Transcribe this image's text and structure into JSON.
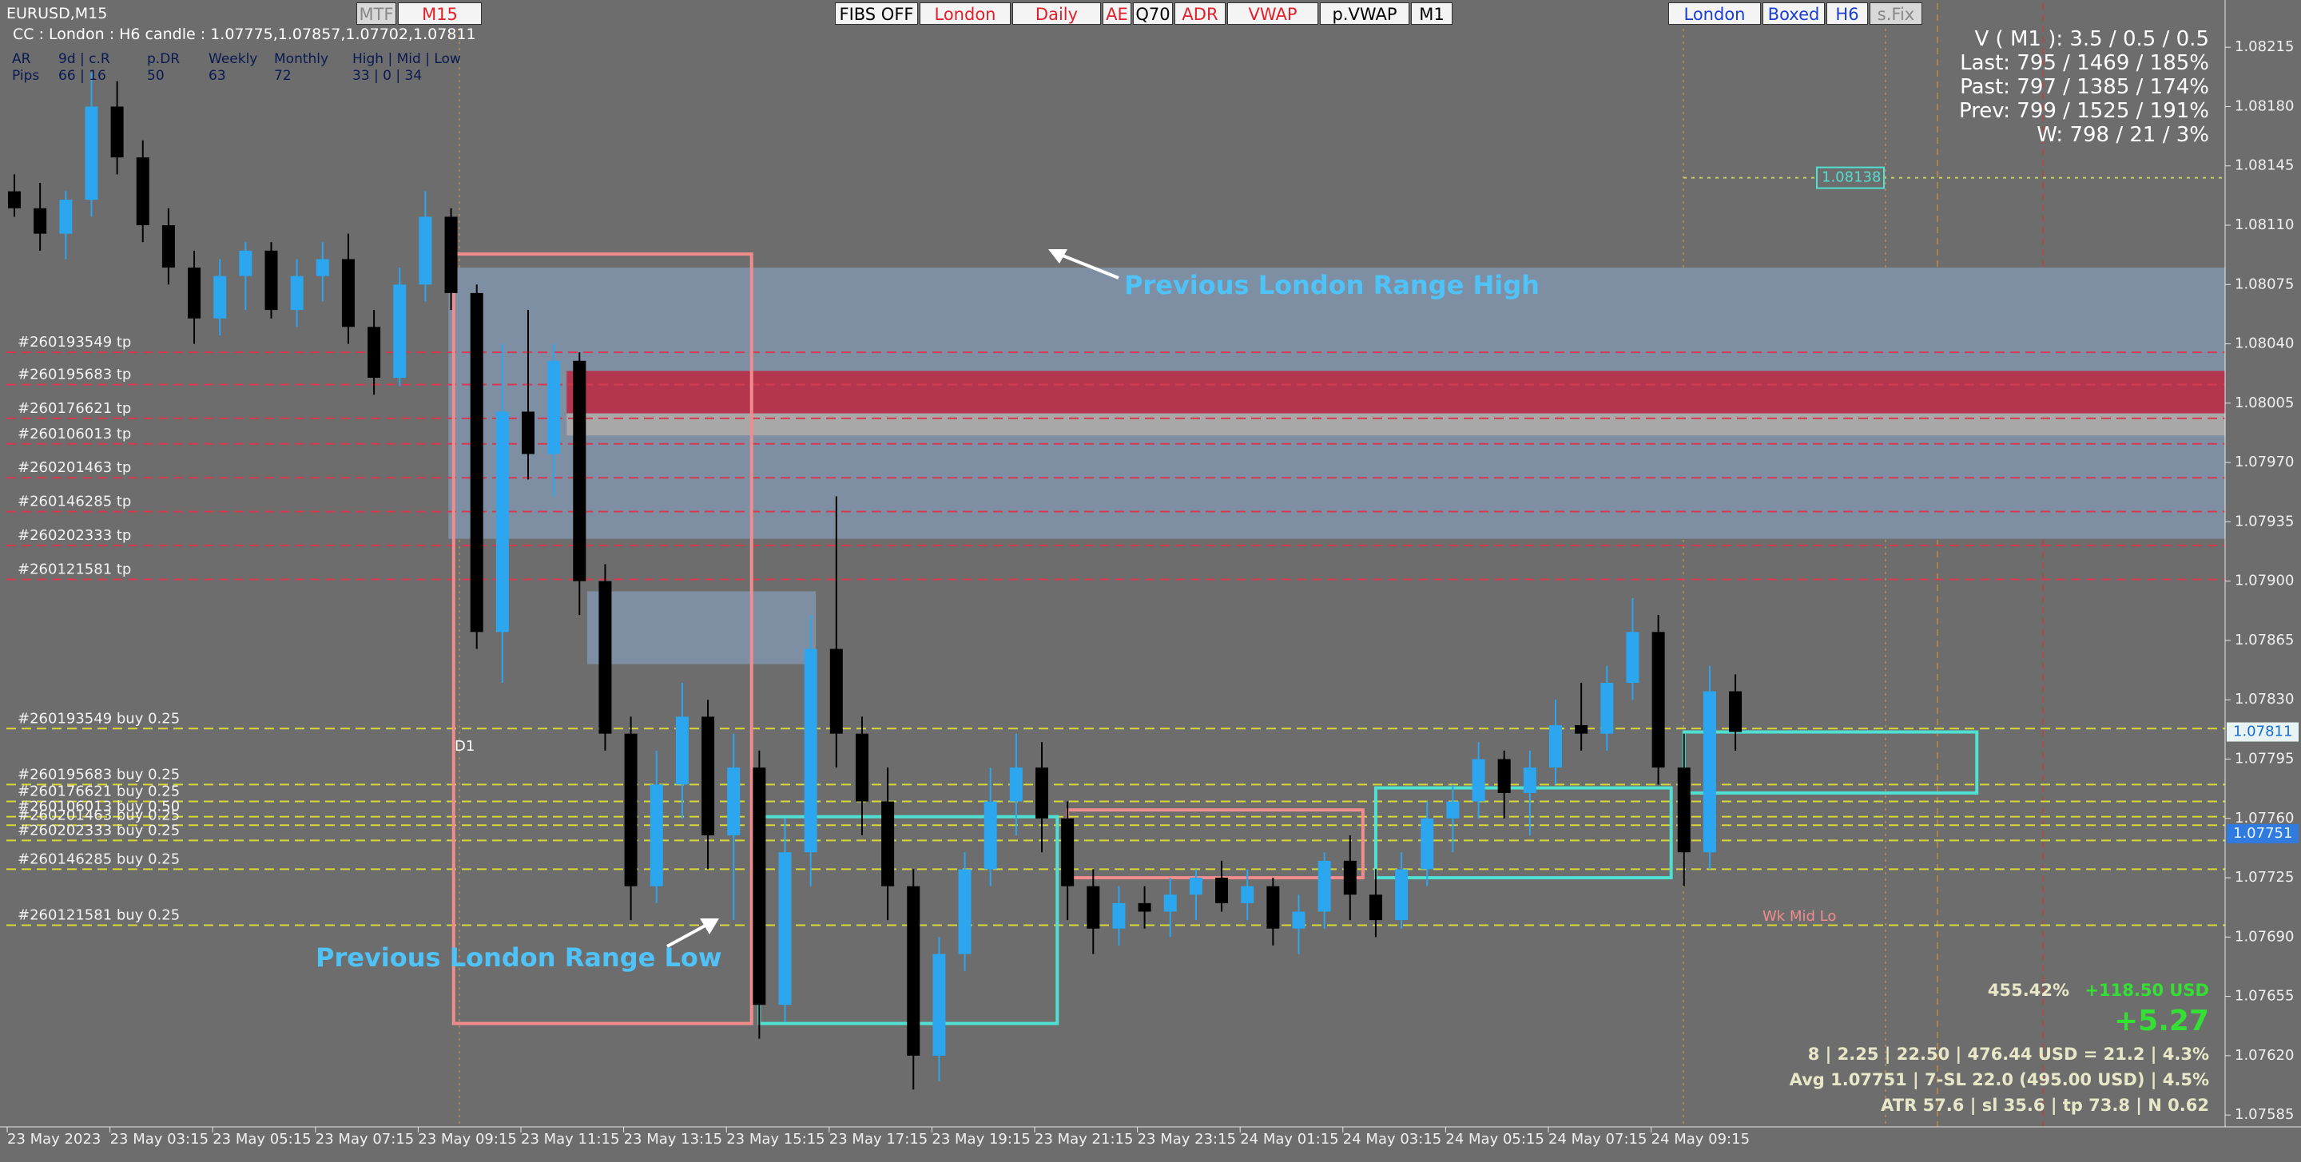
{
  "header": {
    "symbol": "EURUSD,M15",
    "candle_info": "CC : London : H6 candle : 1.07775,1.07857,1.07702,1.07811"
  },
  "stats_table": {
    "rows": [
      [
        "AR",
        "9d | c.R",
        "p.DR",
        "Weekly",
        "Monthly",
        "High | Mid | Low"
      ],
      [
        "Pips",
        "66 | 16",
        "50",
        "63",
        "72",
        "33 | 0 | 34"
      ]
    ]
  },
  "toolbar_left": [
    "MTF",
    "M15"
  ],
  "toolbar_center": [
    "FIBS OFF",
    "London",
    "Daily",
    "AE",
    "Q70",
    "ADR",
    "VWAP",
    "p.VWAP",
    "M1"
  ],
  "toolbar_right": [
    "London",
    "Boxed",
    "H6",
    "s.Fix"
  ],
  "info_panel": [
    "V ( M1 ): 3.5 / 0.5 / 0.5",
    "Last: 795 / 1469 / 185%",
    "Past: 797 / 1385 / 174%",
    "Prev: 799 / 1525 / 191%",
    "W: 798 / 21 / 3%"
  ],
  "bottom_panel": {
    "percent": "455.42%",
    "profit": "+118.50 USD",
    "pips": "+5.27",
    "lines": [
      "8  |  2.25  |  22.50  |  476.44 USD = 21.2  |  4.3%",
      "Avg 1.07751  |  7-SL 22.0 (495.00 USD)  |  4.5%",
      "ATR 57.6  |  sl 35.6  |  tp 73.8  |  N 0.62"
    ]
  },
  "annotations": {
    "range_high": "Previous London Range High",
    "range_low": "Previous London Range Low",
    "d1": "D1",
    "wk_mid_lo": "Wk Mid Lo"
  },
  "chart_data": {
    "type": "candlestick",
    "up_color": "#2ba6ef",
    "down_color": "#000000",
    "open": [
      1.0813,
      1.0812,
      1.08105,
      1.08125,
      1.0818,
      1.0815,
      1.0811,
      1.08085,
      1.08055,
      1.0808,
      1.08095,
      1.0806,
      1.0808,
      1.0809,
      1.0805,
      1.0802,
      1.08075,
      1.08115,
      1.0807,
      1.0787,
      1.08,
      1.07975,
      1.0803,
      1.079,
      1.0781,
      1.0772,
      1.0778,
      1.0782,
      1.0775,
      1.0779,
      1.0765,
      1.0774,
      1.0786,
      1.0781,
      1.0777,
      1.0772,
      1.0762,
      1.0768,
      1.0773,
      1.0777,
      1.0779,
      1.0776,
      1.0772,
      1.07695,
      1.0771,
      1.07705,
      1.07715,
      1.07725,
      1.0771,
      1.0772,
      1.07695,
      1.07705,
      1.07735,
      1.07715,
      1.077,
      1.0773,
      1.0776,
      1.0777,
      1.07795,
      1.07775,
      1.0779,
      1.07815,
      1.0781,
      1.0784,
      1.0787,
      1.0779,
      1.0774,
      1.07835
    ],
    "high": [
      1.0814,
      1.08135,
      1.0813,
      1.082,
      1.08195,
      1.0816,
      1.0812,
      1.08095,
      1.0809,
      1.081,
      1.081,
      1.0809,
      1.081,
      1.08105,
      1.0806,
      1.08085,
      1.0813,
      1.0812,
      1.08075,
      1.0804,
      1.0806,
      1.0804,
      1.08035,
      1.0791,
      1.0782,
      1.078,
      1.0784,
      1.0783,
      1.0781,
      1.078,
      1.0776,
      1.0788,
      1.0795,
      1.0782,
      1.0779,
      1.0773,
      1.0769,
      1.0774,
      1.0779,
      1.0781,
      1.07805,
      1.0777,
      1.0773,
      1.0772,
      1.0772,
      1.07725,
      1.0773,
      1.07735,
      1.0773,
      1.07725,
      1.07715,
      1.0774,
      1.0775,
      1.0773,
      1.0774,
      1.0777,
      1.0778,
      1.07805,
      1.078,
      1.078,
      1.0783,
      1.0784,
      1.0785,
      1.0789,
      1.0788,
      1.0781,
      1.0785,
      1.07845
    ],
    "low": [
      1.08115,
      1.08095,
      1.0809,
      1.08115,
      1.0814,
      1.081,
      1.08075,
      1.0804,
      1.08045,
      1.0806,
      1.08055,
      1.0805,
      1.08065,
      1.0804,
      1.0801,
      1.08015,
      1.08065,
      1.0806,
      1.0786,
      1.0784,
      1.0796,
      1.0795,
      1.0788,
      1.078,
      1.077,
      1.0771,
      1.0776,
      1.0773,
      1.077,
      1.0763,
      1.0764,
      1.0772,
      1.0779,
      1.0775,
      1.077,
      1.076,
      1.07605,
      1.0767,
      1.0772,
      1.0775,
      1.0774,
      1.077,
      1.0768,
      1.07685,
      1.07695,
      1.0769,
      1.077,
      1.07705,
      1.077,
      1.07685,
      1.0768,
      1.07695,
      1.077,
      1.0769,
      1.07695,
      1.0772,
      1.0774,
      1.0776,
      1.0776,
      1.0775,
      1.0778,
      1.078,
      1.078,
      1.0783,
      1.0778,
      1.0772,
      1.0773,
      1.078
    ],
    "close": [
      1.0812,
      1.08105,
      1.08125,
      1.0818,
      1.0815,
      1.0811,
      1.08085,
      1.08055,
      1.0808,
      1.08095,
      1.0806,
      1.0808,
      1.0809,
      1.0805,
      1.0802,
      1.08075,
      1.08115,
      1.0807,
      1.0787,
      1.08,
      1.07975,
      1.0803,
      1.079,
      1.0781,
      1.0772,
      1.0778,
      1.0782,
      1.0775,
      1.0779,
      1.0765,
      1.0774,
      1.0786,
      1.0781,
      1.0777,
      1.0772,
      1.0762,
      1.0768,
      1.0773,
      1.0777,
      1.0779,
      1.0776,
      1.0772,
      1.07695,
      1.0771,
      1.07705,
      1.07715,
      1.07725,
      1.0771,
      1.0772,
      1.07695,
      1.07705,
      1.07735,
      1.07715,
      1.077,
      1.0773,
      1.0776,
      1.0777,
      1.07795,
      1.07775,
      1.0779,
      1.07815,
      1.0781,
      1.0784,
      1.0787,
      1.0779,
      1.0774,
      1.07835,
      1.07811
    ],
    "xticks": [
      {
        "value": 0,
        "label": "23 May 2023"
      },
      {
        "value": 4,
        "label": "23 May 03:15"
      },
      {
        "value": 8,
        "label": "23 May 05:15"
      },
      {
        "value": 12,
        "label": "23 May 07:15"
      },
      {
        "value": 16,
        "label": "23 May 09:15"
      },
      {
        "value": 20,
        "label": "23 May 11:15"
      },
      {
        "value": 24,
        "label": "23 May 13:15"
      },
      {
        "value": 28,
        "label": "23 May 15:15"
      },
      {
        "value": 32,
        "label": "23 May 17:15"
      },
      {
        "value": 36,
        "label": "23 May 19:15"
      },
      {
        "value": 40,
        "label": "23 May 21:15"
      },
      {
        "value": 44,
        "label": "23 May 23:15"
      },
      {
        "value": 48,
        "label": "24 May 01:15"
      },
      {
        "value": 52,
        "label": "24 May 03:15"
      },
      {
        "value": 56,
        "label": "24 May 05:15"
      },
      {
        "value": 60,
        "label": "24 May 07:15"
      },
      {
        "value": 64,
        "label": "24 May 09:15"
      }
    ],
    "ylim": [
      1.07578,
      1.08241
    ],
    "yticks": [
      1.08215,
      {
        "value": 1.0818,
        "label": "1.08180"
      },
      1.08145,
      {
        "value": 1.0811,
        "label": "1.08110"
      },
      1.08075,
      {
        "value": 1.0804,
        "label": "1.08040"
      },
      1.08005,
      {
        "value": 1.0797,
        "label": "1.07970"
      },
      1.07935,
      {
        "value": 1.079,
        "label": "1.07900"
      },
      1.07865,
      {
        "value": 1.0783,
        "label": "1.07830"
      },
      1.07795,
      {
        "value": 1.0776,
        "label": "1.07760"
      },
      1.07725,
      {
        "value": 1.0769,
        "label": "1.07690"
      },
      1.07655,
      {
        "value": 1.0762,
        "label": "1.07620"
      },
      1.07585
    ],
    "zones": [
      {
        "start_bar": 16.9,
        "end_bar": 87,
        "high": 1.08085,
        "low": 1.07925,
        "color": "#7f8fa3"
      },
      {
        "start_bar": 21.5,
        "end_bar": 87,
        "high": 1.08024,
        "low": 1.07999,
        "color": "#b3354e"
      },
      {
        "start_bar": 21.5,
        "end_bar": 87,
        "high": 1.07999,
        "low": 1.07986,
        "color": "#a8a8a8"
      },
      {
        "start_bar": 22.3,
        "end_bar": 31.2,
        "high": 1.07894,
        "low": 1.07851,
        "color": "#7f8fa3"
      }
    ],
    "boxes": [
      {
        "start_bar": 17.1,
        "end_bar": 28.7,
        "high": 1.08093,
        "low": 1.07639,
        "color": "#f08c8c"
      },
      {
        "start_bar": 29,
        "end_bar": 40.6,
        "high": 1.07761,
        "low": 1.07639,
        "color": "#4fe0d2"
      },
      {
        "start_bar": 41,
        "end_bar": 52.5,
        "high": 1.07765,
        "low": 1.07725,
        "color": "#f08c8c"
      },
      {
        "start_bar": 53,
        "end_bar": 64.5,
        "high": 1.07778,
        "low": 1.07725,
        "color": "#4fe0d2"
      },
      {
        "start_bar": 65,
        "end_bar": 76.4,
        "high": 1.07811,
        "low": 1.07775,
        "color": "#4fe0d2"
      }
    ],
    "tp_line_color": "#d63a52",
    "buy_line_color": "#d8d83a",
    "tp_orders": [
      {
        "label": "#260193549 tp",
        "price": 1.08035
      },
      {
        "label": "#260195683 tp",
        "price": 1.08016
      },
      {
        "label": "#260176621 tp",
        "price": 1.07996
      },
      {
        "label": "#260106013 tp",
        "price": 1.07981
      },
      {
        "label": "#260201463 tp",
        "price": 1.07961
      },
      {
        "label": "#260146285 tp",
        "price": 1.07941
      },
      {
        "label": "#260202333 tp",
        "price": 1.07921
      },
      {
        "label": "#260121581 tp",
        "price": 1.07901
      }
    ],
    "buy_orders": [
      {
        "label": "#260193549 buy 0.25",
        "price": 1.07813
      },
      {
        "label": "#260195683 buy 0.25",
        "price": 1.0778
      },
      {
        "label": "#260176621 buy 0.25",
        "price": 1.0777
      },
      {
        "label": "#260106013 buy 0.50",
        "price": 1.07761
      },
      {
        "label": "#260201463 buy 0.25",
        "price": 1.07756
      },
      {
        "label": "#260202333 buy 0.25",
        "price": 1.07747
      },
      {
        "label": "#260146285 buy 0.25",
        "price": 1.0773
      },
      {
        "label": "#260121581 buy 0.25",
        "price": 1.07697
      }
    ],
    "price_labels": [
      {
        "value": 1.07811,
        "label": "1.07811"
      },
      {
        "value": 1.07751,
        "label": "1.07751"
      }
    ],
    "level_label": {
      "value": 1.08138,
      "label": "1.08138"
    }
  }
}
